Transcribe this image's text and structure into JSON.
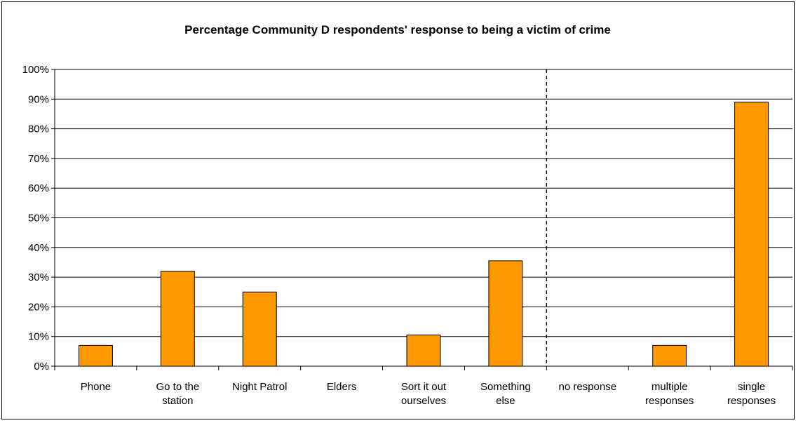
{
  "chart_data": {
    "type": "bar",
    "title": "Percentage Community D respondents' response to being a victim of crime",
    "xlabel": "",
    "ylabel": "",
    "categories": [
      [
        "Phone"
      ],
      [
        "Go to the",
        "station"
      ],
      [
        "Night Patrol"
      ],
      [
        "Elders"
      ],
      [
        "Sort it out",
        "ourselves"
      ],
      [
        "Something",
        "else"
      ],
      [
        "no response"
      ],
      [
        "multiple",
        "responses"
      ],
      [
        "single",
        "responses"
      ]
    ],
    "values": [
      7,
      32,
      25,
      0,
      10.5,
      35.5,
      0,
      7,
      89
    ],
    "ylim": [
      0,
      100
    ],
    "yticks": [
      "0%",
      "10%",
      "20%",
      "30%",
      "40%",
      "50%",
      "60%",
      "70%",
      "80%",
      "90%",
      "100%"
    ],
    "grid": true,
    "legend": "none",
    "divider_after_category": 6,
    "colors": {
      "bar_fill": "#FF9900",
      "bar_stroke": "#000000",
      "gridline": "#000000",
      "background": "#FFFFFF"
    }
  }
}
